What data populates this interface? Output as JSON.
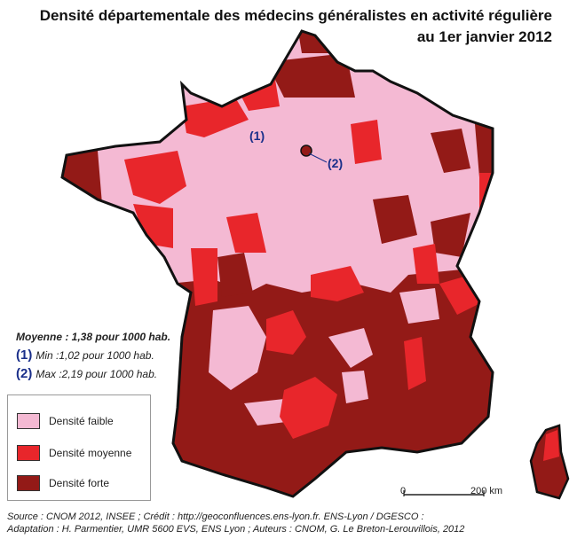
{
  "title_line1": "Densité départementale des médecins généralistes en activité régulière",
  "title_line2": "au 1er janvier 2012",
  "stats": {
    "mean": "Moyenne : 1,38 pour 1000 hab.",
    "min_num": "(1)",
    "min": "Min :1,02 pour 1000 hab.",
    "max_num": "(2)",
    "max": "Max :2,19 pour 1000 hab."
  },
  "map_labels": {
    "one": "(1)",
    "two": "(2)"
  },
  "legend": [
    {
      "label": "Densité faible",
      "color": "#f4b9d3"
    },
    {
      "label": "Densité moyenne",
      "color": "#e8262b"
    },
    {
      "label": "Densité forte",
      "color": "#931a17"
    }
  ],
  "scale": {
    "start": "0",
    "end": "200 km"
  },
  "source_line1": "Source : CNOM 2012, INSEE ; Crédit : http://geoconfluences.ens-lyon.fr. ENS-Lyon / DGESCO :",
  "source_line2": "Adaptation : H. Parmentier, UMR 5600 EVS, ENS Lyon ; Auteurs : CNOM, G. Le Breton-Lerouvillois, 2012"
}
